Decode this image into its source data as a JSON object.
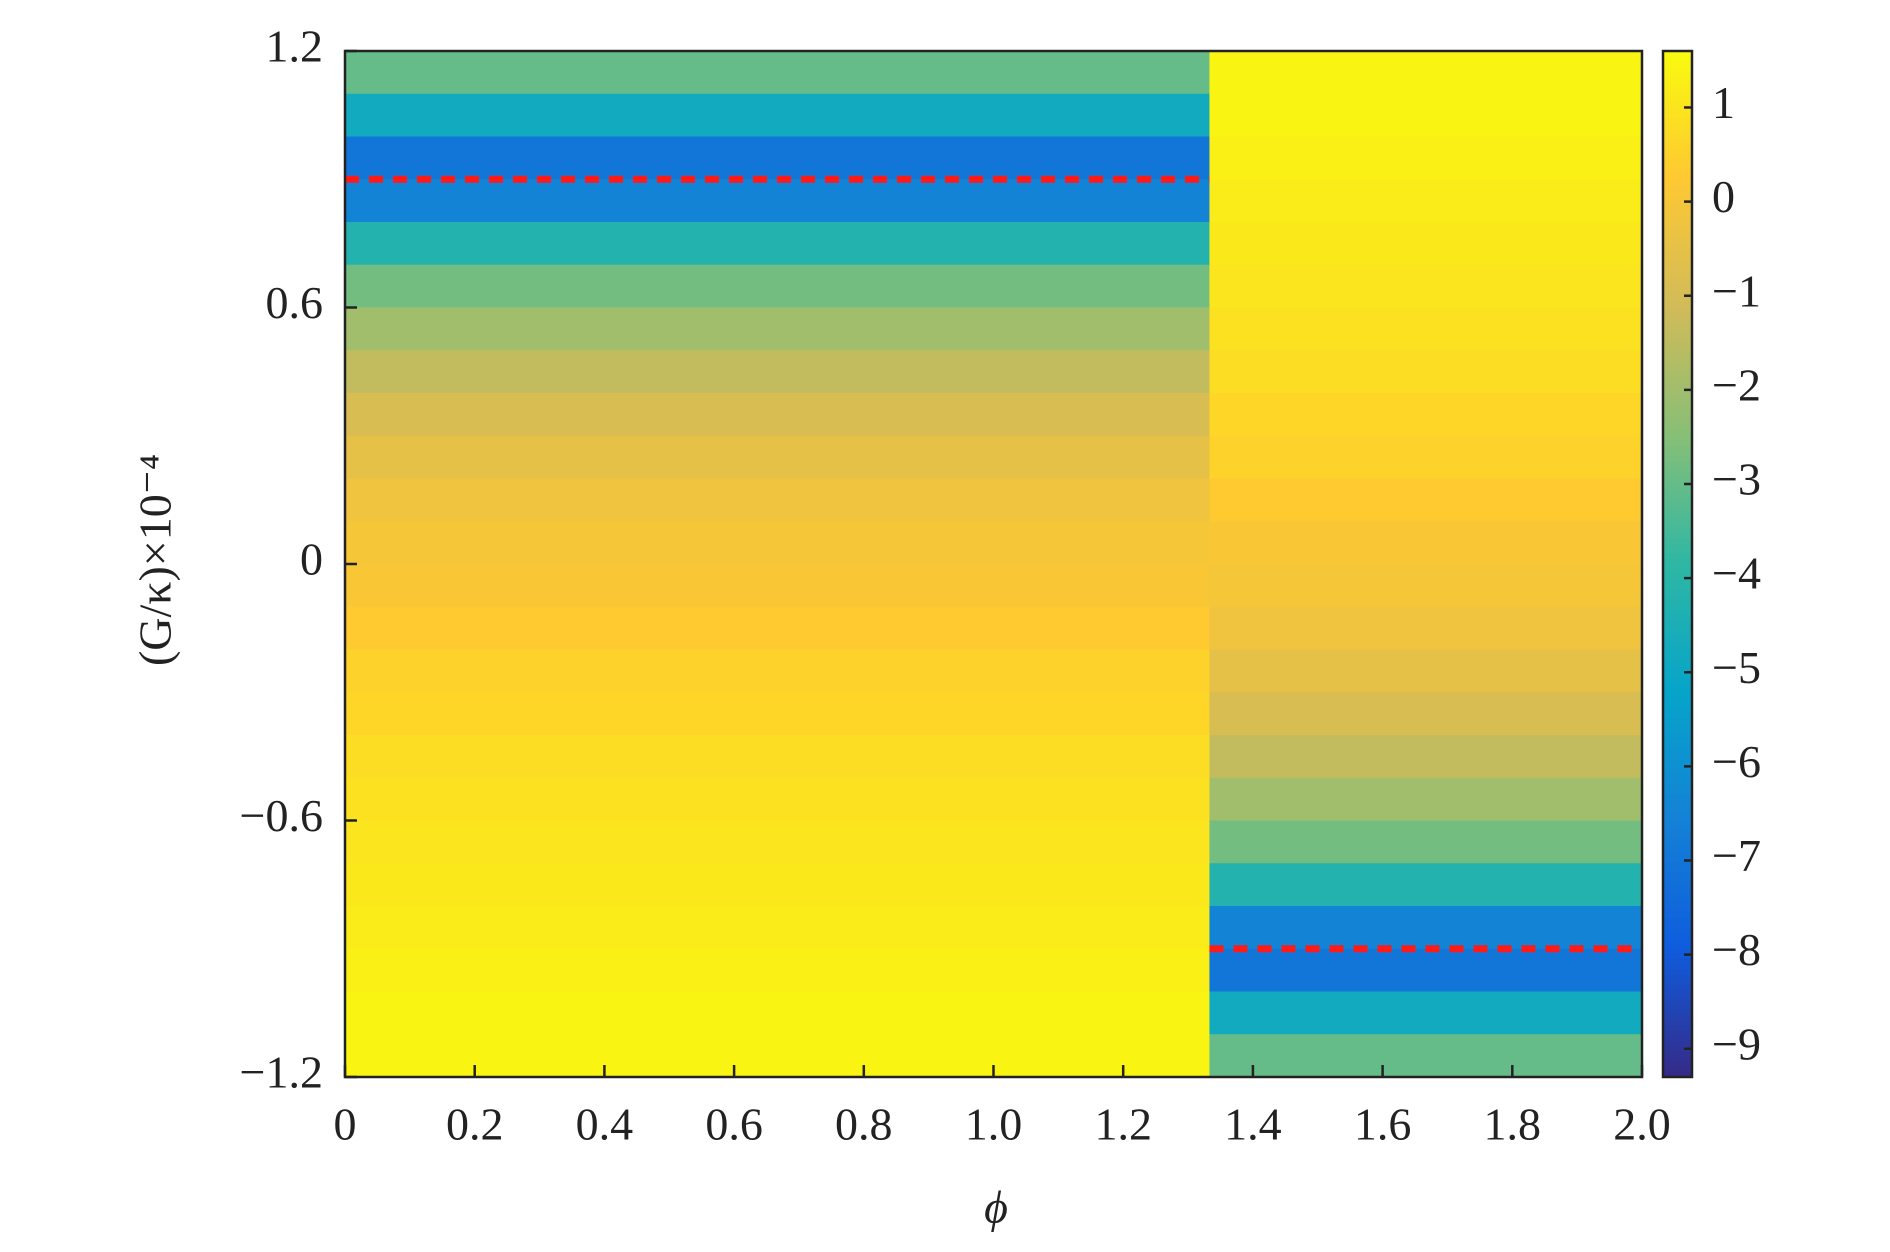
{
  "chart_data": {
    "type": "heatmap",
    "xlabel": "ϕ",
    "ylabel": "(G/κ)×10⁻⁴",
    "x_edges": [
      0,
      1.333,
      2
    ],
    "y_edges": [
      1.2,
      1.1,
      1.0,
      0.9,
      0.8,
      0.7,
      0.6,
      0.5,
      0.4,
      0.3,
      0.2,
      0.1,
      0,
      -0.1,
      -0.2,
      -0.3,
      -0.4,
      -0.5,
      -0.6,
      -0.7,
      -0.8,
      -0.9,
      -1.0,
      -1.1,
      -1.2
    ],
    "values": [
      [
        -3.0,
        1.4
      ],
      [
        -4.8,
        1.4
      ],
      [
        -7.0,
        1.3
      ],
      [
        -6.5,
        1.2
      ],
      [
        -4.2,
        1.1
      ],
      [
        -2.8,
        1.0
      ],
      [
        -2.0,
        0.9
      ],
      [
        -1.4,
        0.8
      ],
      [
        -0.9,
        0.6
      ],
      [
        -0.5,
        0.5
      ],
      [
        -0.2,
        0.3
      ],
      [
        0.0,
        0.1
      ],
      [
        0.1,
        0.0
      ],
      [
        0.3,
        -0.2
      ],
      [
        0.5,
        -0.5
      ],
      [
        0.6,
        -0.9
      ],
      [
        0.8,
        -1.4
      ],
      [
        0.9,
        -2.0
      ],
      [
        1.0,
        -2.8
      ],
      [
        1.1,
        -4.2
      ],
      [
        1.2,
        -6.5
      ],
      [
        1.3,
        -7.0
      ],
      [
        1.4,
        -4.8
      ],
      [
        1.4,
        -3.0
      ]
    ],
    "dashed_lines": [
      {
        "color": "#ff1a1a",
        "x": [
          0,
          1.333
        ],
        "y": [
          0.9,
          0.9
        ]
      },
      {
        "color": "#ff1a1a",
        "x": [
          1.333,
          2
        ],
        "y": [
          -0.9,
          -0.9
        ]
      }
    ],
    "xlim": [
      0,
      2
    ],
    "ylim": [
      -1.2,
      1.2
    ],
    "clim": [
      -9.3,
      1.6
    ],
    "colormap": [
      "#352a87",
      "#0f5cdd",
      "#1481d6",
      "#06a4ca",
      "#2eb7a4",
      "#87bf77",
      "#d1bb59",
      "#fec832",
      "#f9fb0e"
    ],
    "xticks": [
      0,
      0.2,
      0.4,
      0.6,
      0.8,
      {
        "value": 1,
        "label": "1.0"
      },
      1.2,
      1.4,
      1.6,
      1.8,
      {
        "value": 2,
        "label": "2.0"
      }
    ],
    "yticks": [
      {
        "value": -1.2,
        "label": "−1.2"
      },
      {
        "value": -0.6,
        "label": "−0.6"
      },
      0,
      0.6,
      1.2
    ],
    "cticks": [
      {
        "value": -9,
        "label": "−9"
      },
      {
        "value": -8,
        "label": "−8"
      },
      {
        "value": -7,
        "label": "−7"
      },
      {
        "value": -6,
        "label": "−6"
      },
      {
        "value": -5,
        "label": "−5"
      },
      {
        "value": -4,
        "label": "−4"
      },
      {
        "value": -3,
        "label": "−3"
      },
      {
        "value": -2,
        "label": "−2"
      },
      {
        "value": -1,
        "label": "−1"
      },
      0,
      1
    ]
  }
}
